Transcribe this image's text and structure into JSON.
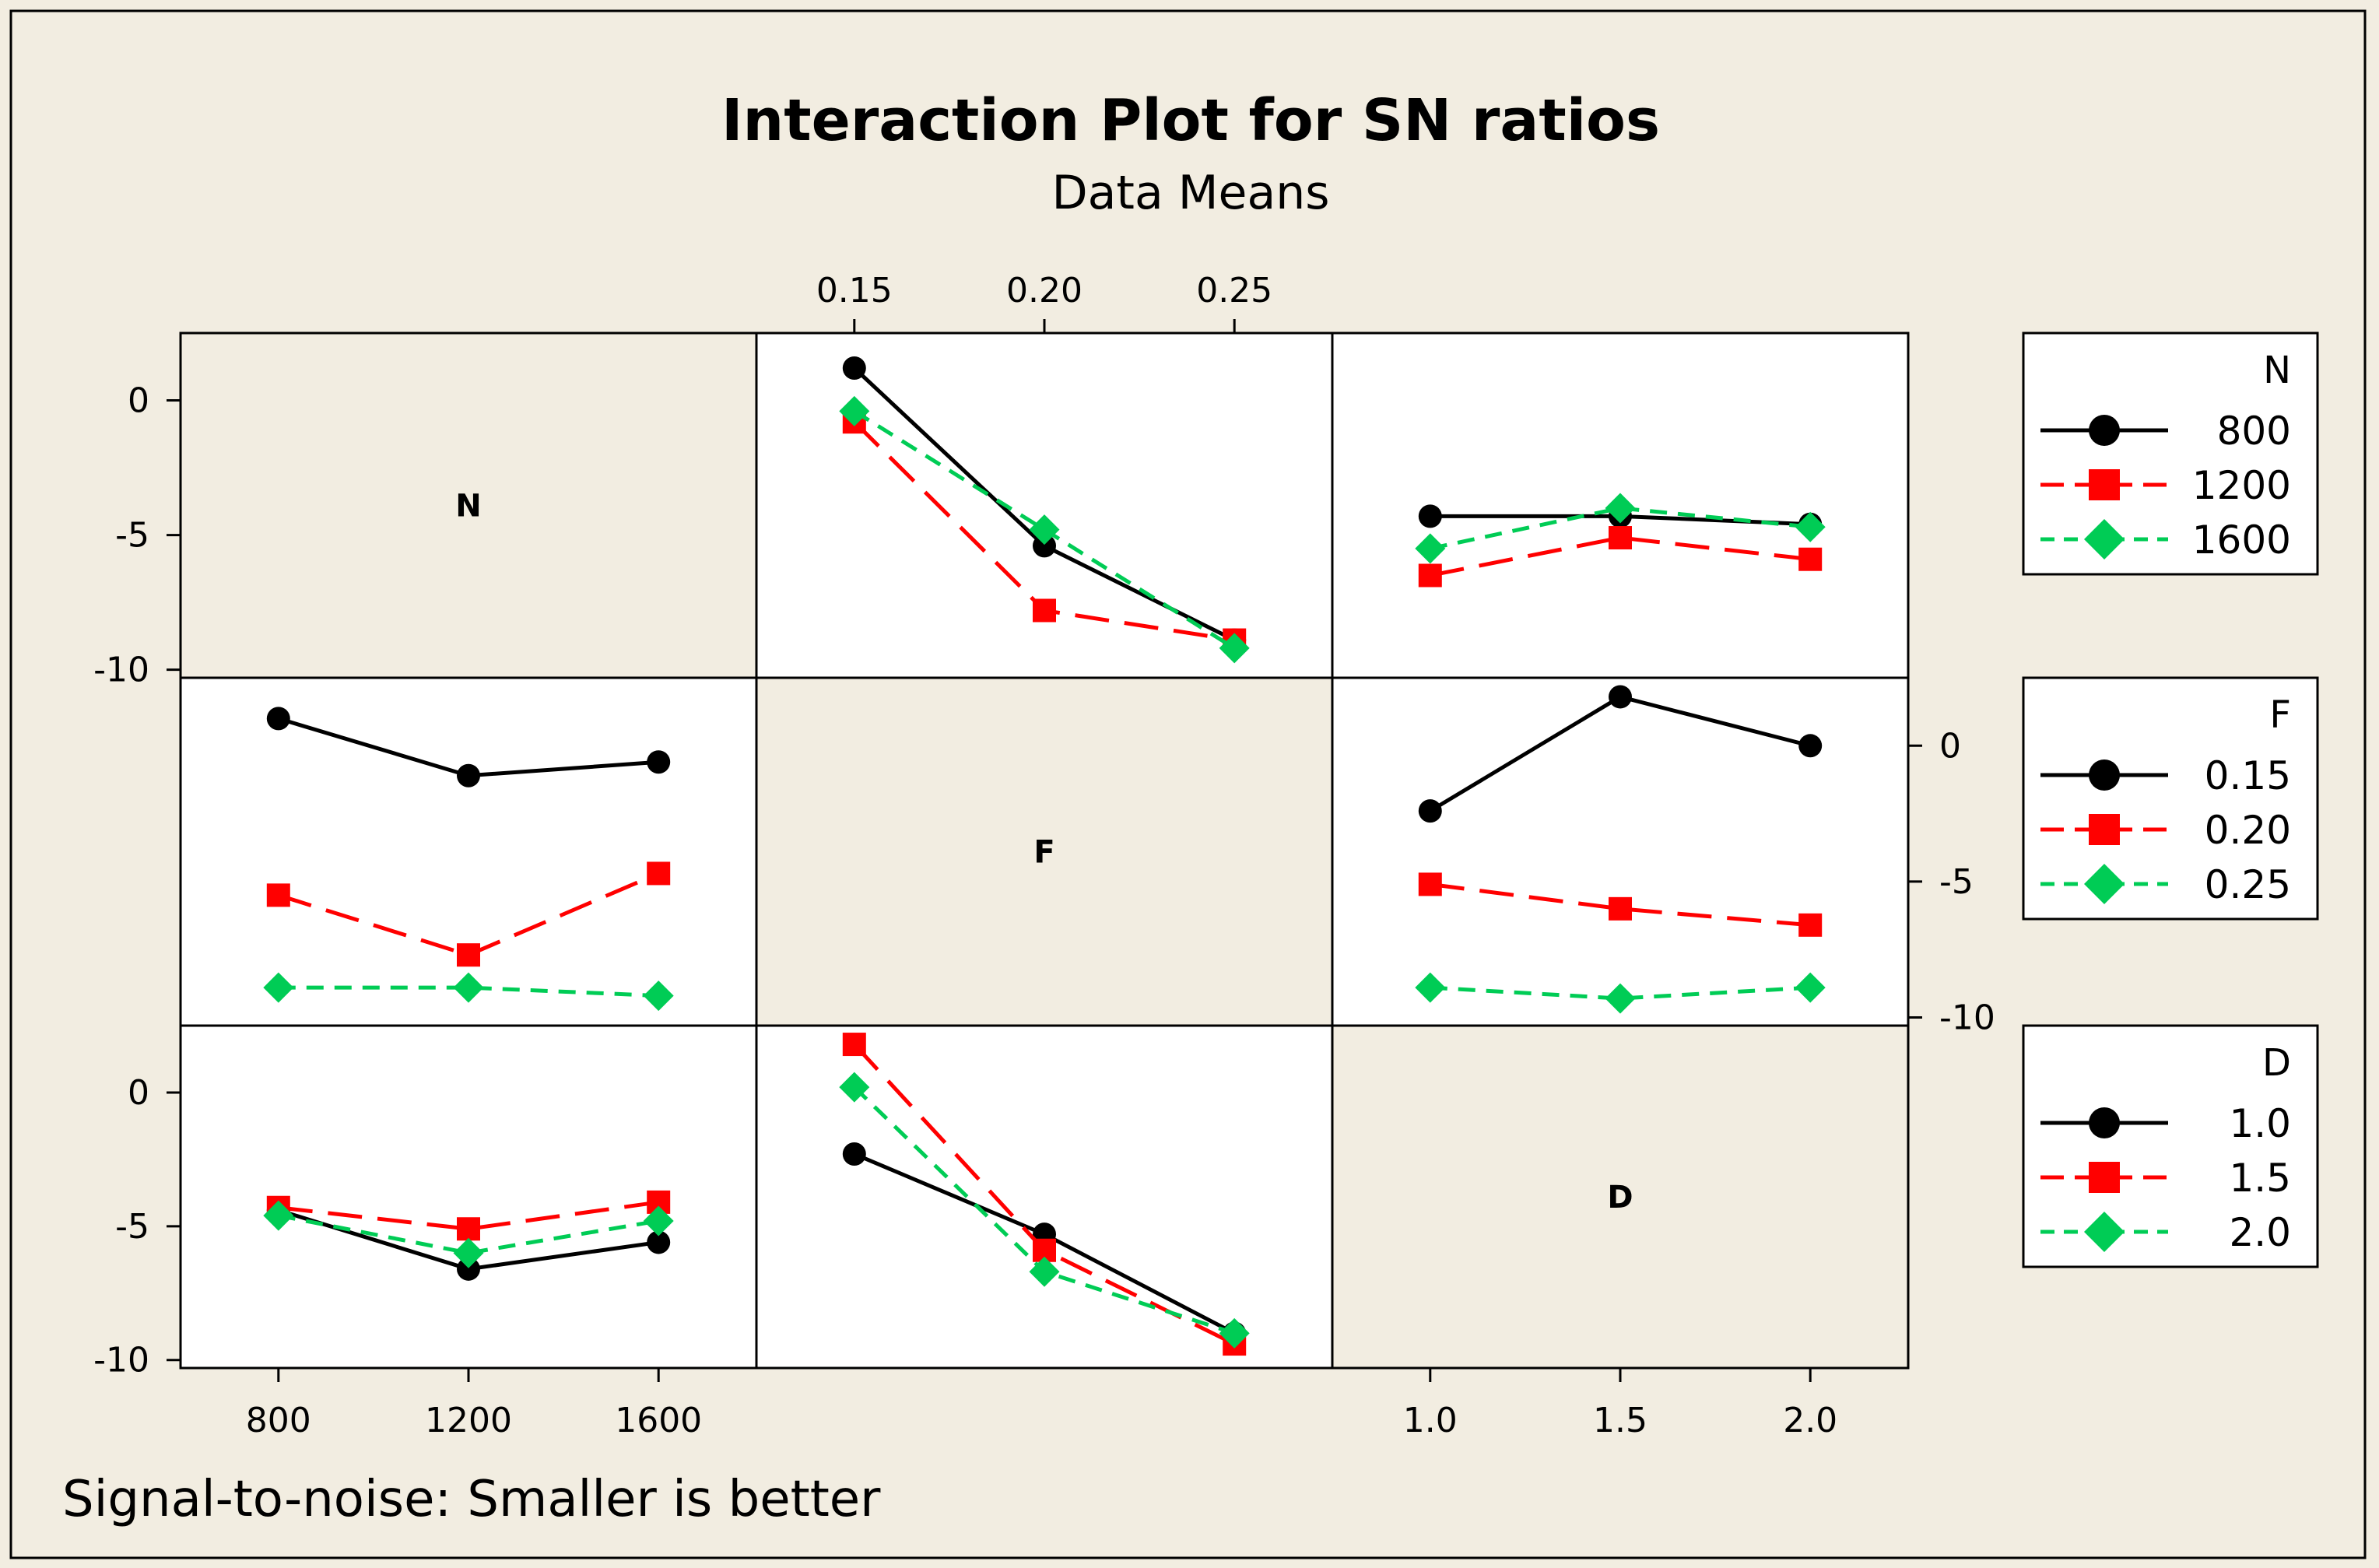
{
  "title": "Interaction Plot for SN ratios",
  "subtitle": "Data Means",
  "footnote": "Signal-to-noise: Smaller is better",
  "colors": {
    "background": "#f2ede1",
    "panel": "#ffffff",
    "level1": "#000000",
    "level2": "#ff0000",
    "level3": "#00cc55"
  },
  "chart_data": {
    "type": "line",
    "plot": "interaction-matrix",
    "factors": [
      {
        "name": "N",
        "levels": [
          "800",
          "1200",
          "1600"
        ],
        "ticks": [
          "800",
          "1200",
          "1600"
        ]
      },
      {
        "name": "F",
        "levels": [
          "0.15",
          "0.20",
          "0.25"
        ],
        "ticks": [
          "0.15",
          "0.20",
          "0.25"
        ]
      },
      {
        "name": "D",
        "levels": [
          "1.0",
          "1.5",
          "2.0"
        ],
        "ticks": [
          "1.0",
          "1.5",
          "2.0"
        ]
      }
    ],
    "y_axis": {
      "ylim": [
        -10.3,
        2.5
      ],
      "ticks": [
        "0",
        "-5",
        "-10"
      ],
      "tick_values": [
        0,
        -5,
        -10
      ]
    },
    "panels": [
      {
        "row": "N",
        "col": "F",
        "series": [
          {
            "name": "800",
            "values": [
              1.2,
              -5.4,
              -8.9
            ]
          },
          {
            "name": "1200",
            "values": [
              -0.8,
              -7.8,
              -8.9
            ]
          },
          {
            "name": "1600",
            "values": [
              -0.4,
              -4.8,
              -9.2
            ]
          }
        ]
      },
      {
        "row": "N",
        "col": "D",
        "series": [
          {
            "name": "800",
            "values": [
              -4.3,
              -4.3,
              -4.6
            ]
          },
          {
            "name": "1200",
            "values": [
              -6.5,
              -5.1,
              -5.9
            ]
          },
          {
            "name": "1600",
            "values": [
              -5.5,
              -4.0,
              -4.7
            ]
          }
        ]
      },
      {
        "row": "F",
        "col": "N",
        "series": [
          {
            "name": "0.15",
            "values": [
              1.0,
              -1.1,
              -0.6
            ]
          },
          {
            "name": "0.20",
            "values": [
              -5.5,
              -7.7,
              -4.7
            ]
          },
          {
            "name": "0.25",
            "values": [
              -8.9,
              -8.9,
              -9.2
            ]
          }
        ]
      },
      {
        "row": "F",
        "col": "D",
        "series": [
          {
            "name": "0.15",
            "values": [
              -2.4,
              1.8,
              0.0
            ]
          },
          {
            "name": "0.20",
            "values": [
              -5.1,
              -6.0,
              -6.6
            ]
          },
          {
            "name": "0.25",
            "values": [
              -8.9,
              -9.3,
              -8.9
            ]
          }
        ]
      },
      {
        "row": "D",
        "col": "N",
        "series": [
          {
            "name": "1.0",
            "values": [
              -4.4,
              -6.6,
              -5.6
            ]
          },
          {
            "name": "1.5",
            "values": [
              -4.3,
              -5.1,
              -4.1
            ]
          },
          {
            "name": "2.0",
            "values": [
              -4.6,
              -6.0,
              -4.8
            ]
          }
        ]
      },
      {
        "row": "D",
        "col": "F",
        "series": [
          {
            "name": "1.0",
            "values": [
              -2.3,
              -5.3,
              -9.0
            ]
          },
          {
            "name": "1.5",
            "values": [
              1.8,
              -5.9,
              -9.4
            ]
          },
          {
            "name": "2.0",
            "values": [
              0.2,
              -6.7,
              -9.0
            ]
          }
        ]
      }
    ],
    "legends": [
      {
        "title": "N",
        "entries": [
          "800",
          "1200",
          "1600"
        ]
      },
      {
        "title": "F",
        "entries": [
          "0.15",
          "0.20",
          "0.25"
        ]
      },
      {
        "title": "D",
        "entries": [
          "1.0",
          "1.5",
          "2.0"
        ]
      }
    ],
    "markers": [
      "circle",
      "square",
      "diamond"
    ],
    "line_styles": [
      "solid",
      "long-dash",
      "short-dash"
    ],
    "grid": false
  }
}
